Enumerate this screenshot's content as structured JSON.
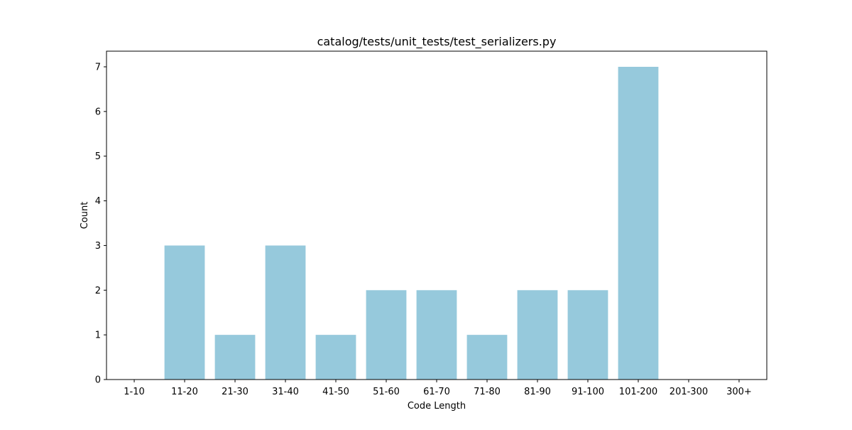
{
  "chart_data": {
    "type": "bar",
    "title": "catalog/tests/unit_tests/test_serializers.py",
    "xlabel": "Code Length",
    "ylabel": "Count",
    "categories": [
      "1-10",
      "11-20",
      "21-30",
      "31-40",
      "41-50",
      "51-60",
      "61-70",
      "71-80",
      "81-90",
      "91-100",
      "101-200",
      "201-300",
      "300+"
    ],
    "values": [
      0,
      3,
      1,
      3,
      1,
      2,
      2,
      1,
      2,
      2,
      7,
      0,
      0
    ],
    "yticks": [
      0,
      1,
      2,
      3,
      4,
      5,
      6,
      7
    ],
    "ylim": [
      0,
      7.35
    ],
    "bar_color": "#96c9dc",
    "grid": false,
    "legend": false
  }
}
